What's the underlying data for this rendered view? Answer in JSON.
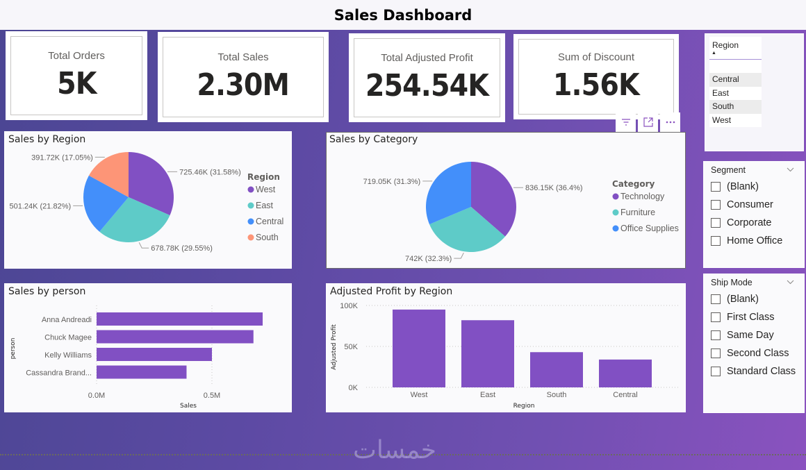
{
  "header": {
    "title": "Sales Dashboard"
  },
  "kpis": [
    {
      "label": "Total Orders",
      "value": "5K"
    },
    {
      "label": "Total Sales",
      "value": "2.30M"
    },
    {
      "label": "Total Adjusted Profit",
      "value": "254.54K"
    },
    {
      "label": "Sum of Discount",
      "value": "1.56K"
    }
  ],
  "visual_header": {
    "icons": [
      "filter-icon",
      "focus-mode-icon",
      "more-options-icon"
    ]
  },
  "colors": {
    "purple": "#8150c3",
    "teal": "#5ecbc8",
    "blue": "#438ffa",
    "salmon": "#fd9577"
  },
  "region_slicer": {
    "header": "Region",
    "sort_indicator": "▲",
    "items": [
      "Central",
      "East",
      "South",
      "West"
    ]
  },
  "segment_slicer": {
    "title": "Segment",
    "items": [
      "(Blank)",
      "Consumer",
      "Corporate",
      "Home Office"
    ]
  },
  "shipmode_slicer": {
    "title": "Ship Mode",
    "items": [
      "(Blank)",
      "First Class",
      "Same Day",
      "Second Class",
      "Standard Class"
    ]
  },
  "watermark": "خمسات",
  "chart_data": [
    {
      "id": "sales-by-region",
      "type": "pie",
      "title": "Sales by Region",
      "legend_title": "Region",
      "legend_position": "right",
      "slices": [
        {
          "name": "West",
          "value": 725.46,
          "unit": "K",
          "pct": 31.58,
          "label": "725.46K (31.58%)",
          "color": "#8150c3"
        },
        {
          "name": "East",
          "value": 678.78,
          "unit": "K",
          "pct": 29.55,
          "label": "678.78K (29.55%)",
          "color": "#5ecbc8"
        },
        {
          "name": "Central",
          "value": 501.24,
          "unit": "K",
          "pct": 21.82,
          "label": "501.24K (21.82%)",
          "color": "#438ffa"
        },
        {
          "name": "South",
          "value": 391.72,
          "unit": "K",
          "pct": 17.05,
          "label": "391.72K (17.05%)",
          "color": "#fd9577"
        }
      ]
    },
    {
      "id": "sales-by-category",
      "type": "pie",
      "title": "Sales by Category",
      "legend_title": "Category",
      "legend_position": "right",
      "slices": [
        {
          "name": "Technology",
          "value": 836.15,
          "unit": "K",
          "pct": 36.4,
          "label": "836.15K (36.4%)",
          "color": "#8150c3"
        },
        {
          "name": "Furniture",
          "value": 742,
          "unit": "K",
          "pct": 32.3,
          "label": "742K (32.3%)",
          "color": "#5ecbc8"
        },
        {
          "name": "Office Supplies",
          "value": 719.05,
          "unit": "K",
          "pct": 31.3,
          "label": "719.05K (31.3%)",
          "color": "#438ffa"
        }
      ]
    },
    {
      "id": "sales-by-person",
      "type": "bar",
      "orientation": "horizontal",
      "title": "Sales by person",
      "xlabel": "Sales",
      "ylabel": "person",
      "categories": [
        "Anna Andreadi",
        "Chuck Magee",
        "Kelly Williams",
        "Cassandra Brand..."
      ],
      "values": [
        0.72,
        0.68,
        0.5,
        0.39
      ],
      "unit": "M",
      "xlim": [
        0,
        0.8
      ],
      "xticks": [
        {
          "v": 0,
          "label": "0.0M"
        },
        {
          "v": 0.5,
          "label": "0.5M"
        }
      ],
      "grid": true,
      "color": "#8150c3"
    },
    {
      "id": "adjusted-profit-by-region",
      "type": "bar",
      "orientation": "vertical",
      "title": "Adjusted Profit by Region",
      "xlabel": "Region",
      "ylabel": "Adjusted Profit",
      "categories": [
        "West",
        "East",
        "South",
        "Central"
      ],
      "values": [
        95,
        82,
        43,
        34
      ],
      "unit": "K",
      "ylim": [
        0,
        100
      ],
      "yticks": [
        {
          "v": 0,
          "label": "0K"
        },
        {
          "v": 50,
          "label": "50K"
        },
        {
          "v": 100,
          "label": "100K"
        }
      ],
      "grid": true,
      "color": "#8150c3"
    }
  ]
}
